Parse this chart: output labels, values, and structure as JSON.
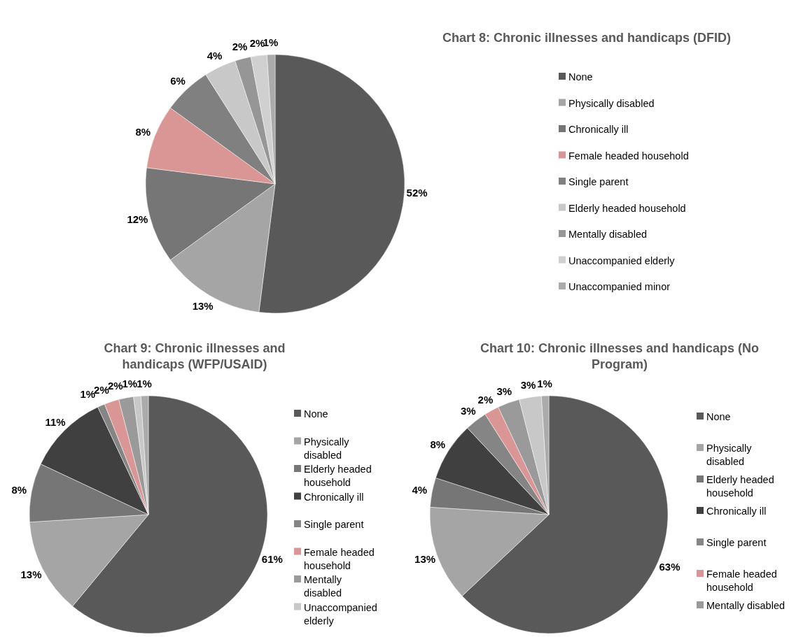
{
  "chart_data": [
    {
      "type": "pie",
      "title": "Chart 8: Chronic illnesses and handicaps (DFID)",
      "categories": [
        "None",
        "Physically disabled",
        "Chronically ill",
        "Female headed household",
        "Single parent",
        "Elderly headed household",
        "Mentally disabled",
        "Unaccompanied elderly",
        "Unaccompanied minor"
      ],
      "values": [
        52,
        13,
        12,
        8,
        6,
        4,
        2,
        2,
        1
      ],
      "value_labels": [
        "52%",
        "13%",
        "12%",
        "8%",
        "6%",
        "4%",
        "2%",
        "2%",
        "1%"
      ],
      "colors": [
        "#595959",
        "#a5a5a5",
        "#767676",
        "#d99694",
        "#808080",
        "#c8c8c8",
        "#969696",
        "#d0d0d0",
        "#ababab"
      ],
      "legend": "right"
    },
    {
      "type": "pie",
      "title": "Chart 9: Chronic illnesses and handicaps (WFP/USAID)",
      "categories": [
        "None",
        "Physically disabled",
        "Elderly headed household",
        "Chronically ill",
        "Single parent",
        "Female headed household",
        "Mentally disabled",
        "Unaccompanied elderly",
        null
      ],
      "values": [
        61,
        13,
        8,
        11,
        1,
        2,
        2,
        1,
        1
      ],
      "value_labels": [
        "61%",
        "13%",
        "8%",
        "11%",
        "1%",
        "2%",
        "2%",
        "1%",
        "1%"
      ],
      "colors": [
        "#595959",
        "#a5a5a5",
        "#767676",
        "#404040",
        "#858585",
        "#d99694",
        "#9a9a9a",
        "#c8c8c8",
        "#ababab"
      ],
      "legend": "right"
    },
    {
      "type": "pie",
      "title": "Chart 10: Chronic illnesses and handicaps (No Program)",
      "categories": [
        "None",
        "Physically disabled",
        "Elderly headed household",
        "Chronically ill",
        "Single parent",
        "Female headed household",
        "Mentally disabled",
        null,
        null
      ],
      "values": [
        63,
        13,
        4,
        8,
        3,
        2,
        3,
        3,
        1
      ],
      "value_labels": [
        "63%",
        "13%",
        "4%",
        "8%",
        "3%",
        "2%",
        "3%",
        "3%",
        "1%"
      ],
      "colors": [
        "#595959",
        "#a5a5a5",
        "#767676",
        "#404040",
        "#858585",
        "#d99694",
        "#9a9a9a",
        "#c8c8c8",
        "#ababab"
      ],
      "legend": "right"
    }
  ]
}
